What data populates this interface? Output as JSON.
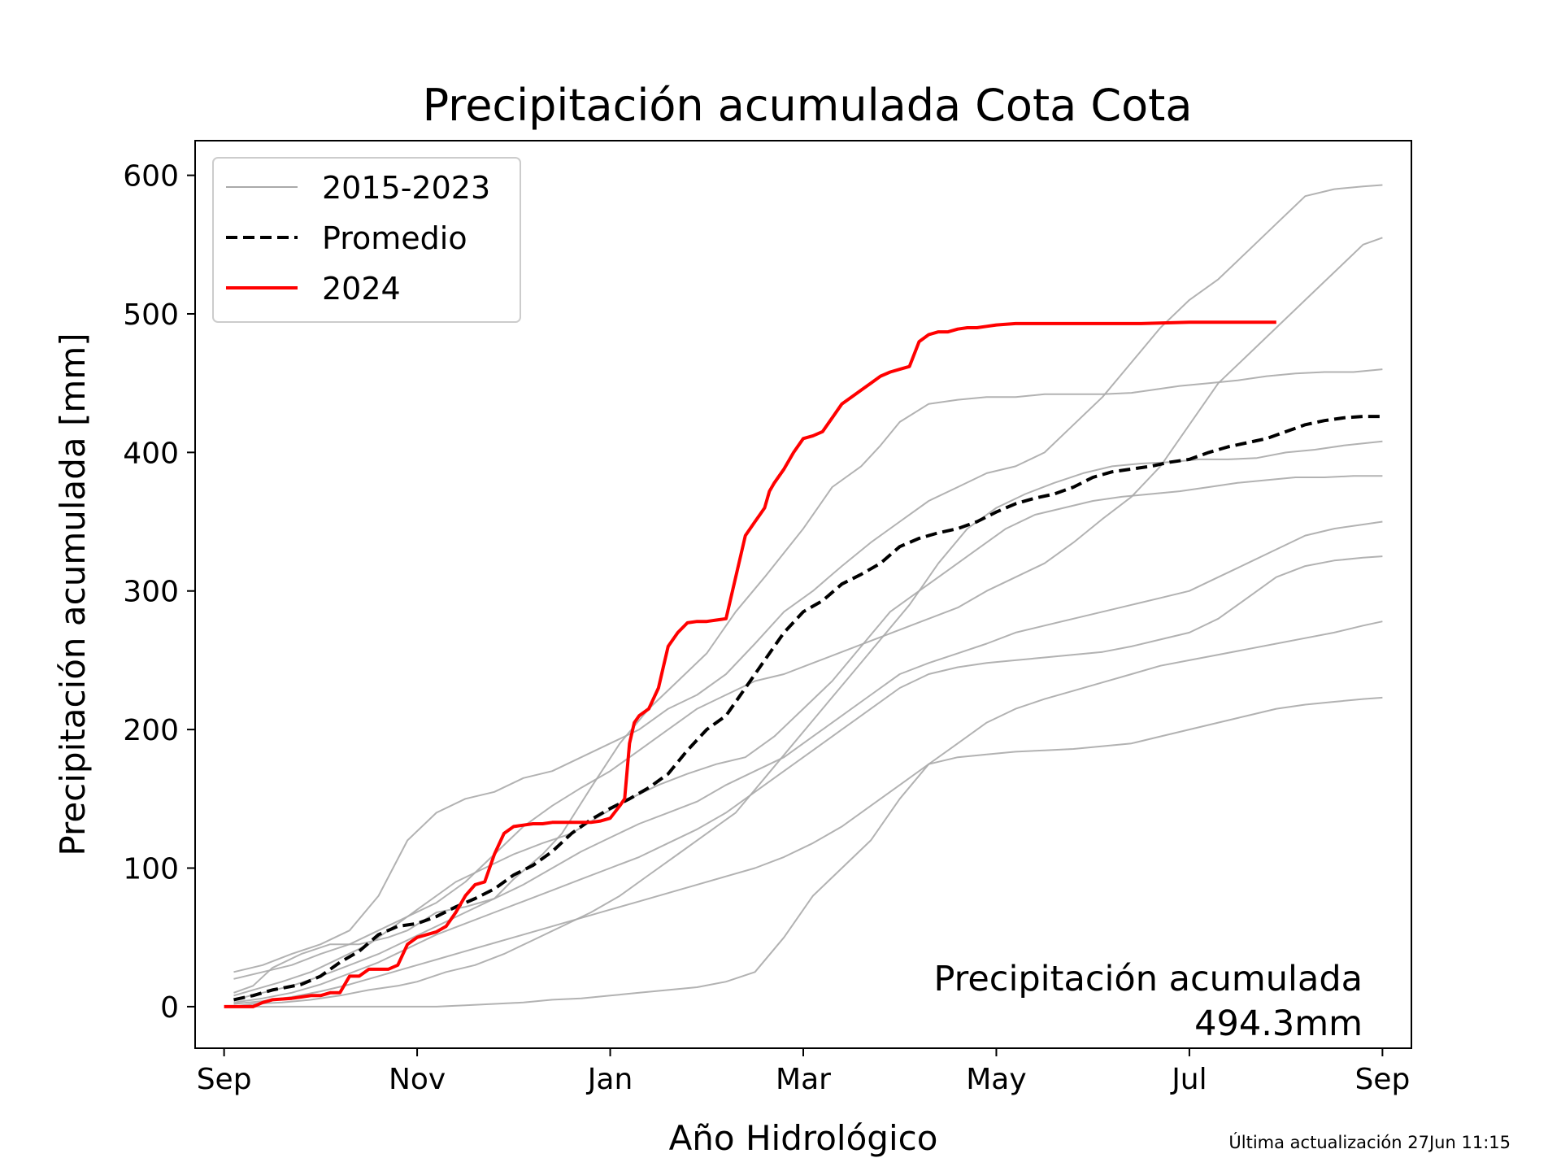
{
  "chart_data": {
    "type": "line",
    "title": "Precipitación acumulada Cota Cota",
    "xlabel": "Año Hidrológico",
    "ylabel": "Precipitación acumulada [mm]",
    "ylim": [
      -30,
      625
    ],
    "xlim": [
      -0.3,
      12.3
    ],
    "yticks": [
      0,
      100,
      200,
      300,
      400,
      500,
      600
    ],
    "xticks": [
      {
        "x": 0,
        "label": "Sep"
      },
      {
        "x": 2,
        "label": "Nov"
      },
      {
        "x": 4,
        "label": "Jan"
      },
      {
        "x": 6,
        "label": "Mar"
      },
      {
        "x": 8,
        "label": "May"
      },
      {
        "x": 10,
        "label": "Jul"
      },
      {
        "x": 12,
        "label": "Sep"
      }
    ],
    "legend": {
      "placement": "upper-left",
      "entries": [
        {
          "label": "2015-2023",
          "color": "#aaaaaa",
          "style": "solid-thin"
        },
        {
          "label": "Promedio",
          "color": "#000000",
          "style": "dashed"
        },
        {
          "label": "2024",
          "color": "#ff0000",
          "style": "solid"
        }
      ]
    },
    "annotation": {
      "line1": "Precipitación acumulada",
      "line2": "494.3mm"
    },
    "history": {
      "color": "#aaaaaa",
      "series": [
        {
          "x": [
            0.1,
            0.3,
            0.5,
            0.8,
            1.1,
            1.4,
            1.7,
            1.9,
            2.2,
            2.5,
            2.8,
            3.0,
            3.3,
            3.5,
            3.8,
            4.1,
            4.4,
            4.7,
            5.0,
            5.3,
            5.6,
            6.0,
            6.3,
            6.6,
            6.8,
            7.0,
            7.3,
            7.6,
            7.9,
            8.2,
            8.5,
            8.8,
            9.1,
            9.4,
            9.6,
            9.9,
            10.2,
            10.5,
            10.8,
            11.1,
            11.4,
            11.7,
            12.0
          ],
          "y": [
            10,
            15,
            28,
            38,
            45,
            45,
            50,
            55,
            68,
            72,
            78,
            92,
            110,
            125,
            158,
            190,
            215,
            235,
            255,
            285,
            310,
            345,
            375,
            390,
            405,
            422,
            435,
            438,
            440,
            440,
            442,
            442,
            442,
            443,
            445,
            448,
            450,
            452,
            455,
            457,
            458,
            458,
            460
          ]
        },
        {
          "x": [
            0.1,
            0.3,
            0.6,
            0.9,
            1.2,
            1.5,
            1.8,
            2.0,
            2.3,
            2.6,
            2.9,
            3.2,
            3.5,
            3.8,
            4.1,
            4.4,
            4.7,
            5.0,
            5.3,
            5.6,
            5.9,
            6.2,
            6.5,
            6.8,
            7.1,
            7.4,
            7.7,
            8.0,
            8.3,
            8.6,
            8.9,
            9.2,
            9.5,
            9.8,
            10.1,
            10.4,
            10.7,
            11.0,
            11.3,
            11.6,
            12.0
          ],
          "y": [
            0,
            2,
            3,
            5,
            8,
            12,
            15,
            18,
            25,
            30,
            38,
            48,
            58,
            68,
            80,
            95,
            110,
            125,
            140,
            165,
            190,
            215,
            240,
            265,
            290,
            320,
            345,
            360,
            370,
            378,
            385,
            390,
            392,
            393,
            395,
            395,
            396,
            400,
            402,
            405,
            408
          ]
        },
        {
          "x": [
            0.1,
            0.3,
            0.6,
            0.9,
            1.2,
            1.5,
            1.8,
            2.1,
            2.4,
            2.7,
            3.0,
            3.3,
            3.6,
            3.9,
            4.2,
            4.5,
            4.8,
            5.1,
            5.4,
            5.7,
            6.0,
            6.3,
            6.6,
            6.9,
            7.2,
            7.5,
            7.8,
            8.1,
            8.4,
            8.7,
            9.0,
            9.3,
            9.6,
            9.9,
            10.2,
            10.5,
            10.8,
            11.1,
            11.4,
            11.7,
            12.0
          ],
          "y": [
            8,
            12,
            18,
            25,
            35,
            45,
            60,
            75,
            90,
            100,
            110,
            118,
            125,
            138,
            150,
            160,
            168,
            175,
            180,
            195,
            215,
            235,
            260,
            285,
            300,
            315,
            330,
            345,
            355,
            360,
            365,
            368,
            370,
            372,
            375,
            378,
            380,
            382,
            382,
            383,
            383
          ]
        },
        {
          "x": [
            0.1,
            0.4,
            0.7,
            1.0,
            1.3,
            1.6,
            1.9,
            2.2,
            2.5,
            2.8,
            3.1,
            3.4,
            3.7,
            4.0,
            4.3,
            4.6,
            4.9,
            5.2,
            5.5,
            5.8,
            6.1,
            6.4,
            6.7,
            7.0,
            7.3,
            7.6,
            7.9,
            8.2,
            8.5,
            8.8,
            9.1,
            9.4,
            9.7,
            10.0,
            10.3,
            10.6,
            10.9,
            11.2,
            11.5,
            11.8,
            12.0
          ],
          "y": [
            0,
            0,
            0,
            0,
            0,
            0,
            0,
            0,
            1,
            2,
            3,
            5,
            6,
            8,
            10,
            12,
            14,
            18,
            25,
            50,
            80,
            100,
            120,
            150,
            175,
            180,
            182,
            184,
            185,
            186,
            188,
            190,
            195,
            200,
            205,
            210,
            215,
            218,
            220,
            222,
            223
          ]
        },
        {
          "x": [
            0.1,
            0.4,
            0.7,
            1.0,
            1.3,
            1.6,
            1.9,
            2.2,
            2.5,
            2.8,
            3.1,
            3.4,
            3.7,
            4.0,
            4.3,
            4.6,
            4.9,
            5.2,
            5.5,
            5.8,
            6.1,
            6.4,
            6.7,
            7.0,
            7.3,
            7.6,
            7.9,
            8.2,
            8.5,
            8.8,
            9.1,
            9.4,
            9.7,
            10.0,
            10.3,
            10.6,
            10.9,
            11.2,
            11.5,
            11.8,
            12.0
          ],
          "y": [
            20,
            25,
            30,
            38,
            45,
            55,
            65,
            75,
            90,
            110,
            130,
            145,
            158,
            170,
            185,
            200,
            215,
            225,
            235,
            240,
            248,
            256,
            264,
            272,
            280,
            288,
            300,
            310,
            320,
            335,
            352,
            368,
            390,
            420,
            450,
            470,
            490,
            510,
            530,
            550,
            555
          ]
        },
        {
          "x": [
            0.1,
            0.4,
            0.7,
            1.0,
            1.3,
            1.6,
            1.9,
            2.2,
            2.5,
            2.8,
            3.1,
            3.4,
            3.7,
            4.0,
            4.3,
            4.6,
            4.9,
            5.2,
            5.5,
            5.8,
            6.1,
            6.4,
            6.7,
            7.0,
            7.3,
            7.6,
            7.9,
            8.2,
            8.5,
            8.8,
            9.1,
            9.4,
            9.7,
            10.0,
            10.3,
            10.6,
            10.9,
            11.2,
            11.5,
            11.8,
            12.0
          ],
          "y": [
            25,
            30,
            38,
            45,
            55,
            80,
            120,
            140,
            150,
            155,
            165,
            170,
            180,
            190,
            200,
            215,
            225,
            240,
            262,
            285,
            300,
            318,
            335,
            350,
            365,
            375,
            385,
            390,
            400,
            420,
            440,
            465,
            490,
            510,
            525,
            545,
            565,
            585,
            590,
            592,
            593
          ]
        },
        {
          "x": [
            0.1,
            0.4,
            0.7,
            1.0,
            1.3,
            1.6,
            1.9,
            2.2,
            2.5,
            2.8,
            3.1,
            3.4,
            3.7,
            4.0,
            4.3,
            4.6,
            4.9,
            5.2,
            5.5,
            5.8,
            6.1,
            6.4,
            6.7,
            7.0,
            7.3,
            7.6,
            7.9,
            8.2,
            8.5,
            8.8,
            9.1,
            9.4,
            9.7,
            10.0,
            10.3,
            10.6,
            10.9,
            11.2,
            11.5,
            11.8,
            12.0
          ],
          "y": [
            5,
            10,
            15,
            22,
            30,
            38,
            48,
            58,
            68,
            78,
            88,
            100,
            112,
            122,
            132,
            140,
            148,
            160,
            170,
            180,
            195,
            210,
            225,
            240,
            248,
            255,
            262,
            270,
            275,
            280,
            285,
            290,
            295,
            300,
            310,
            320,
            330,
            340,
            345,
            348,
            350
          ]
        },
        {
          "x": [
            0.1,
            0.4,
            0.7,
            1.0,
            1.3,
            1.6,
            1.9,
            2.2,
            2.5,
            2.8,
            3.1,
            3.4,
            3.7,
            4.0,
            4.3,
            4.6,
            4.9,
            5.2,
            5.5,
            5.8,
            6.1,
            6.4,
            6.7,
            7.0,
            7.3,
            7.6,
            7.9,
            8.2,
            8.5,
            8.8,
            9.1,
            9.4,
            9.7,
            10.0,
            10.3,
            10.6,
            10.9,
            11.2,
            11.5,
            11.8,
            12.0
          ],
          "y": [
            3,
            6,
            10,
            16,
            24,
            32,
            42,
            52,
            60,
            68,
            76,
            84,
            92,
            100,
            108,
            118,
            128,
            140,
            155,
            170,
            185,
            200,
            215,
            230,
            240,
            245,
            248,
            250,
            252,
            254,
            256,
            260,
            265,
            270,
            280,
            295,
            310,
            318,
            322,
            324,
            325
          ]
        },
        {
          "x": [
            0.1,
            0.4,
            0.7,
            1.0,
            1.3,
            1.6,
            1.9,
            2.2,
            2.5,
            2.8,
            3.1,
            3.4,
            3.7,
            4.0,
            4.3,
            4.6,
            4.9,
            5.2,
            5.5,
            5.8,
            6.1,
            6.4,
            6.7,
            7.0,
            7.3,
            7.6,
            7.9,
            8.2,
            8.5,
            8.8,
            9.1,
            9.4,
            9.7,
            10.0,
            10.3,
            10.6,
            10.9,
            11.2,
            11.5,
            11.8,
            12.0
          ],
          "y": [
            2,
            4,
            7,
            11,
            16,
            22,
            28,
            34,
            40,
            46,
            52,
            58,
            64,
            70,
            76,
            82,
            88,
            94,
            100,
            108,
            118,
            130,
            145,
            160,
            175,
            190,
            205,
            215,
            222,
            228,
            234,
            240,
            246,
            250,
            254,
            258,
            262,
            266,
            270,
            275,
            278
          ]
        }
      ]
    },
    "series": [
      {
        "name": "Promedio",
        "color": "#000000",
        "dashed": true,
        "x": [
          0.1,
          0.3,
          0.5,
          0.8,
          1.0,
          1.2,
          1.4,
          1.6,
          1.8,
          2.0,
          2.2,
          2.4,
          2.6,
          2.8,
          3.0,
          3.2,
          3.4,
          3.6,
          3.8,
          4.0,
          4.2,
          4.4,
          4.6,
          4.8,
          5.0,
          5.2,
          5.4,
          5.6,
          5.8,
          6.0,
          6.2,
          6.4,
          6.6,
          6.8,
          7.0,
          7.2,
          7.4,
          7.6,
          7.8,
          8.0,
          8.2,
          8.4,
          8.6,
          8.8,
          9.0,
          9.2,
          9.4,
          9.6,
          9.8,
          10.0,
          10.2,
          10.4,
          10.6,
          10.8,
          11.0,
          11.2,
          11.4,
          11.6,
          11.8,
          12.0
        ],
        "y": [
          5,
          8,
          12,
          16,
          22,
          32,
          40,
          52,
          58,
          60,
          65,
          72,
          78,
          85,
          95,
          102,
          112,
          125,
          135,
          143,
          150,
          158,
          168,
          185,
          200,
          210,
          230,
          250,
          270,
          285,
          293,
          305,
          312,
          320,
          332,
          338,
          342,
          345,
          350,
          357,
          363,
          367,
          370,
          375,
          382,
          386,
          388,
          390,
          393,
          395,
          400,
          404,
          407,
          410,
          415,
          420,
          423,
          425,
          426,
          426
        ]
      },
      {
        "name": "2024",
        "color": "#ff0000",
        "dashed": false,
        "x": [
          0.0,
          0.2,
          0.3,
          0.4,
          0.5,
          0.7,
          0.8,
          0.9,
          1.0,
          1.1,
          1.2,
          1.3,
          1.4,
          1.5,
          1.6,
          1.7,
          1.8,
          1.9,
          2.0,
          2.1,
          2.2,
          2.3,
          2.4,
          2.5,
          2.6,
          2.7,
          2.8,
          2.9,
          3.0,
          3.1,
          3.2,
          3.3,
          3.4,
          3.5,
          3.6,
          3.7,
          3.8,
          3.9,
          4.0,
          4.1,
          4.15,
          4.2,
          4.25,
          4.3,
          4.4,
          4.5,
          4.55,
          4.6,
          4.7,
          4.8,
          4.9,
          5.0,
          5.1,
          5.2,
          5.3,
          5.4,
          5.5,
          5.55,
          5.6,
          5.65,
          5.7,
          5.8,
          5.9,
          6.0,
          6.1,
          6.2,
          6.3,
          6.4,
          6.5,
          6.6,
          6.7,
          6.8,
          6.9,
          7.0,
          7.1,
          7.2,
          7.3,
          7.4,
          7.5,
          7.6,
          7.7,
          7.8,
          7.9,
          8.0,
          8.2,
          8.5,
          9.0,
          9.5,
          10.0,
          10.2,
          10.4,
          10.6,
          10.9
        ],
        "y": [
          0,
          0,
          0,
          3,
          5,
          6,
          7,
          8,
          8,
          10,
          10,
          22,
          22,
          27,
          27,
          27,
          30,
          45,
          50,
          52,
          54,
          58,
          68,
          80,
          88,
          90,
          110,
          125,
          130,
          131,
          132,
          132,
          133,
          133,
          133,
          133,
          133,
          134,
          136,
          145,
          150,
          190,
          205,
          210,
          215,
          230,
          245,
          260,
          270,
          277,
          278,
          278,
          279,
          280,
          310,
          340,
          350,
          355,
          360,
          372,
          378,
          388,
          400,
          410,
          412,
          415,
          425,
          435,
          440,
          445,
          450,
          455,
          458,
          460,
          462,
          480,
          485,
          487,
          487,
          489,
          490,
          490,
          491,
          492,
          493,
          493,
          493,
          493,
          494,
          494,
          494,
          494,
          494
        ]
      }
    ]
  },
  "footnote": "Última actualización 27Jun 11:15"
}
